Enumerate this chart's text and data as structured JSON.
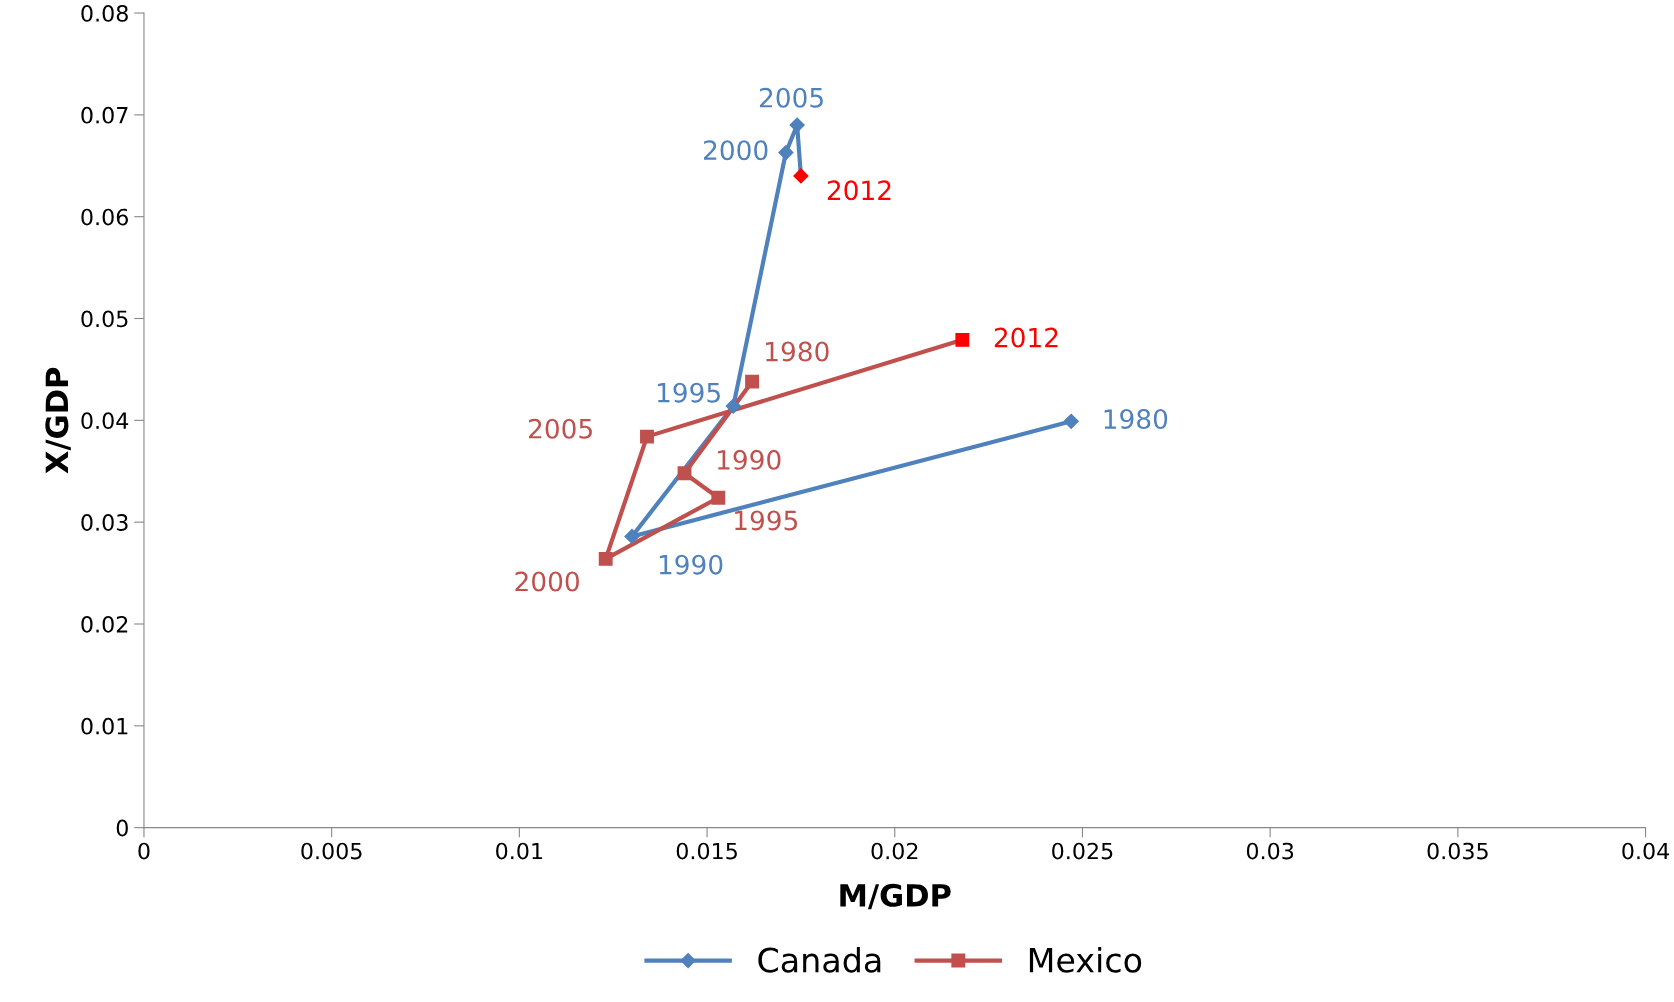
{
  "chart_data": {
    "type": "line",
    "xlabel": "M/GDP",
    "ylabel": "X/GDP",
    "xlim": [
      0,
      0.04
    ],
    "xticks": [
      0,
      0.005,
      0.01,
      0.015,
      0.02,
      0.025,
      0.03,
      0.035,
      0.04
    ],
    "ylim": [
      0,
      0.08
    ],
    "yticks": [
      0,
      0.01,
      0.02,
      0.03,
      0.04,
      0.05,
      0.06,
      0.07,
      0.08
    ],
    "grid": false,
    "legend": "bottom",
    "series": [
      {
        "name": "Canada",
        "color": "#4f81bd",
        "marker": "diamond",
        "x": [
          0.0247,
          0.013,
          0.0157,
          0.0171,
          0.0174,
          0.0175
        ],
        "values": [
          0.0399,
          0.0286,
          0.0414,
          0.0663,
          0.069,
          0.064
        ],
        "colors": [
          "#4f81bd",
          "#4f81bd",
          "#4f81bd",
          "#4f81bd",
          "#4f81bd",
          "#ff0000"
        ]
      },
      {
        "name": "Mexico",
        "color": "#c0504d",
        "marker": "square",
        "x": [
          0.0162,
          0.0144,
          0.0153,
          0.0123,
          0.0134,
          0.0218
        ],
        "values": [
          0.0438,
          0.0348,
          0.0324,
          0.0264,
          0.0384,
          0.0479
        ],
        "colors": [
          "#c0504d",
          "#c0504d",
          "#c0504d",
          "#c0504d",
          "#c0504d",
          "#ff0000"
        ]
      }
    ],
    "annotations": [
      {
        "text": "1980",
        "x": 0.0247,
        "y": 0.0399
      },
      {
        "text": "1990",
        "x": 0.013,
        "y": 0.0286
      },
      {
        "text": "1995",
        "x": 0.0157,
        "y": 0.0414
      },
      {
        "text": "2000",
        "x": 0.0171,
        "y": 0.0663
      },
      {
        "text": "2005",
        "x": 0.0174,
        "y": 0.069
      },
      {
        "text": "2012",
        "x": 0.0175,
        "y": 0.064
      },
      {
        "text": "1980",
        "x": 0.0162,
        "y": 0.0438
      },
      {
        "text": "1990",
        "x": 0.0144,
        "y": 0.0348
      },
      {
        "text": "1995",
        "x": 0.0153,
        "y": 0.0324
      },
      {
        "text": "2000",
        "x": 0.0123,
        "y": 0.0264
      },
      {
        "text": "2005",
        "x": 0.0134,
        "y": 0.0384
      },
      {
        "text": "2012",
        "x": 0.0218,
        "y": 0.0479
      }
    ]
  }
}
